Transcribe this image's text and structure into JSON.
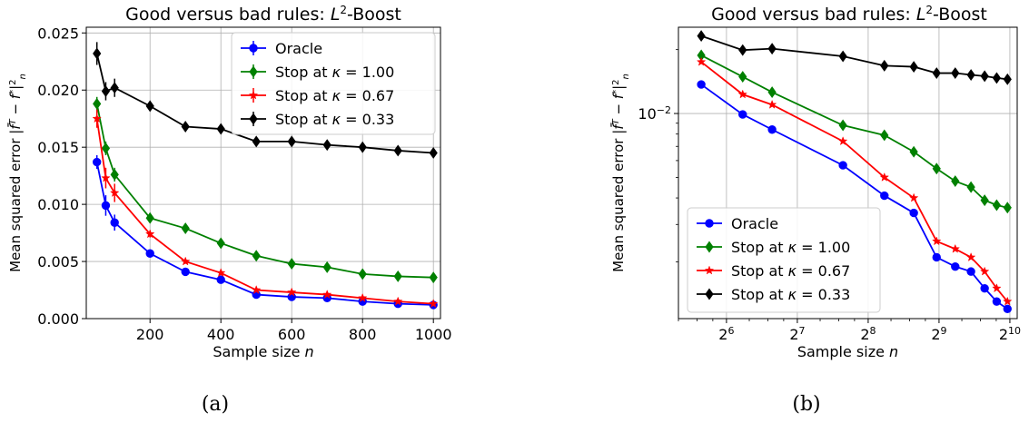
{
  "chart_data": [
    {
      "type": "line",
      "panel_label": "(a)",
      "title": "Good versus bad rules: L²-Boost",
      "xlabel": "Sample size n",
      "ylabel": "Mean squared error |f̄ᵀ − f*|²ₙ",
      "xscale": "linear",
      "yscale": "linear",
      "xlim": [
        20,
        1020
      ],
      "ylim": [
        0,
        0.0255
      ],
      "x_ticks": [
        200,
        400,
        600,
        800,
        1000
      ],
      "x_tick_labels": [
        "200",
        "400",
        "600",
        "800",
        "1000"
      ],
      "y_ticks": [
        0.0,
        0.005,
        0.01,
        0.015,
        0.02,
        0.025
      ],
      "y_tick_labels": [
        "0.000",
        "0.005",
        "0.010",
        "0.015",
        "0.020",
        "0.025"
      ],
      "grid": true,
      "legend_position": "upper right",
      "x": [
        50,
        75,
        100,
        200,
        300,
        400,
        500,
        600,
        700,
        800,
        900,
        1000
      ],
      "series": [
        {
          "name": "Oracle",
          "color": "#0000ff",
          "marker": "circle",
          "values": [
            0.0137,
            0.0099,
            0.0084,
            0.0057,
            0.0041,
            0.0034,
            0.0021,
            0.0019,
            0.0018,
            0.0015,
            0.0013,
            0.0012
          ],
          "errors": [
            0.0006,
            0.0009,
            0.0007,
            0.0002,
            0.0002,
            0.0002,
            0.0001,
            0.0001,
            0.0001,
            0.0001,
            0.0001,
            0.0001
          ]
        },
        {
          "name": "Stop at κ = 1.00",
          "color": "#008000",
          "marker": "diamond",
          "values": [
            0.0188,
            0.0149,
            0.0126,
            0.0088,
            0.0079,
            0.0066,
            0.0055,
            0.0048,
            0.0045,
            0.0039,
            0.0037,
            0.0036
          ],
          "errors": [
            0.0006,
            0.0006,
            0.0006,
            0.0003,
            0.0003,
            0.0002,
            0.0002,
            0.0002,
            0.0002,
            0.0002,
            0.0002,
            0.0002
          ]
        },
        {
          "name": "Stop at κ = 0.67",
          "color": "#ff0000",
          "marker": "star",
          "values": [
            0.0175,
            0.0123,
            0.011,
            0.0074,
            0.005,
            0.004,
            0.0025,
            0.0023,
            0.0021,
            0.0018,
            0.0015,
            0.0013
          ],
          "errors": [
            0.0008,
            0.0009,
            0.0008,
            0.0003,
            0.0002,
            0.0002,
            0.0001,
            0.0001,
            0.0001,
            0.0001,
            0.0001,
            0.0001
          ]
        },
        {
          "name": "Stop at κ = 0.33",
          "color": "#000000",
          "marker": "diamond",
          "values": [
            0.0232,
            0.0199,
            0.0202,
            0.0186,
            0.0168,
            0.0166,
            0.0155,
            0.0155,
            0.0152,
            0.015,
            0.0147,
            0.0145
          ],
          "errors": [
            0.001,
            0.0008,
            0.0008,
            0.0003,
            0.0003,
            0.0003,
            0.0002,
            0.0002,
            0.0002,
            0.0002,
            0.0002,
            0.0002
          ]
        }
      ]
    },
    {
      "type": "line",
      "panel_label": "(b)",
      "title": "Good versus bad rules: L²-Boost",
      "xlabel": "Sample size n",
      "ylabel": "Mean squared error |f̄ᵀ − f*|²ₙ",
      "xscale": "log2",
      "yscale": "log10",
      "xlim": [
        40,
        1100
      ],
      "ylim": [
        0.00108,
        0.0255
      ],
      "x_ticks": [
        64,
        128,
        256,
        512,
        1024
      ],
      "x_tick_labels": [
        [
          "2",
          "6"
        ],
        [
          "2",
          "7"
        ],
        [
          "2",
          "8"
        ],
        [
          "2",
          "9"
        ],
        [
          "2",
          "10"
        ]
      ],
      "y_ticks": [
        0.01
      ],
      "y_tick_labels": [
        [
          "10",
          "−2"
        ]
      ],
      "grid": true,
      "legend_position": "lower left",
      "x": [
        50,
        75,
        100,
        200,
        300,
        400,
        500,
        600,
        700,
        800,
        900,
        1000
      ],
      "series": [
        {
          "name": "Oracle",
          "color": "#0000ff",
          "marker": "circle",
          "values": [
            0.0137,
            0.0099,
            0.0084,
            0.0057,
            0.0041,
            0.0034,
            0.0021,
            0.0019,
            0.0018,
            0.0015,
            0.0013,
            0.0012
          ]
        },
        {
          "name": "Stop at κ = 1.00",
          "color": "#008000",
          "marker": "diamond",
          "values": [
            0.0188,
            0.0149,
            0.0126,
            0.0088,
            0.0079,
            0.0066,
            0.0055,
            0.0048,
            0.0045,
            0.0039,
            0.0037,
            0.0036
          ]
        },
        {
          "name": "Stop at κ = 0.67",
          "color": "#ff0000",
          "marker": "star",
          "values": [
            0.0175,
            0.0123,
            0.011,
            0.0074,
            0.005,
            0.004,
            0.0025,
            0.0023,
            0.0021,
            0.0018,
            0.0015,
            0.0013
          ]
        },
        {
          "name": "Stop at κ = 0.33",
          "color": "#000000",
          "marker": "diamond",
          "values": [
            0.0232,
            0.0199,
            0.0202,
            0.0186,
            0.0168,
            0.0166,
            0.0155,
            0.0155,
            0.0152,
            0.015,
            0.0147,
            0.0145
          ]
        }
      ]
    }
  ]
}
